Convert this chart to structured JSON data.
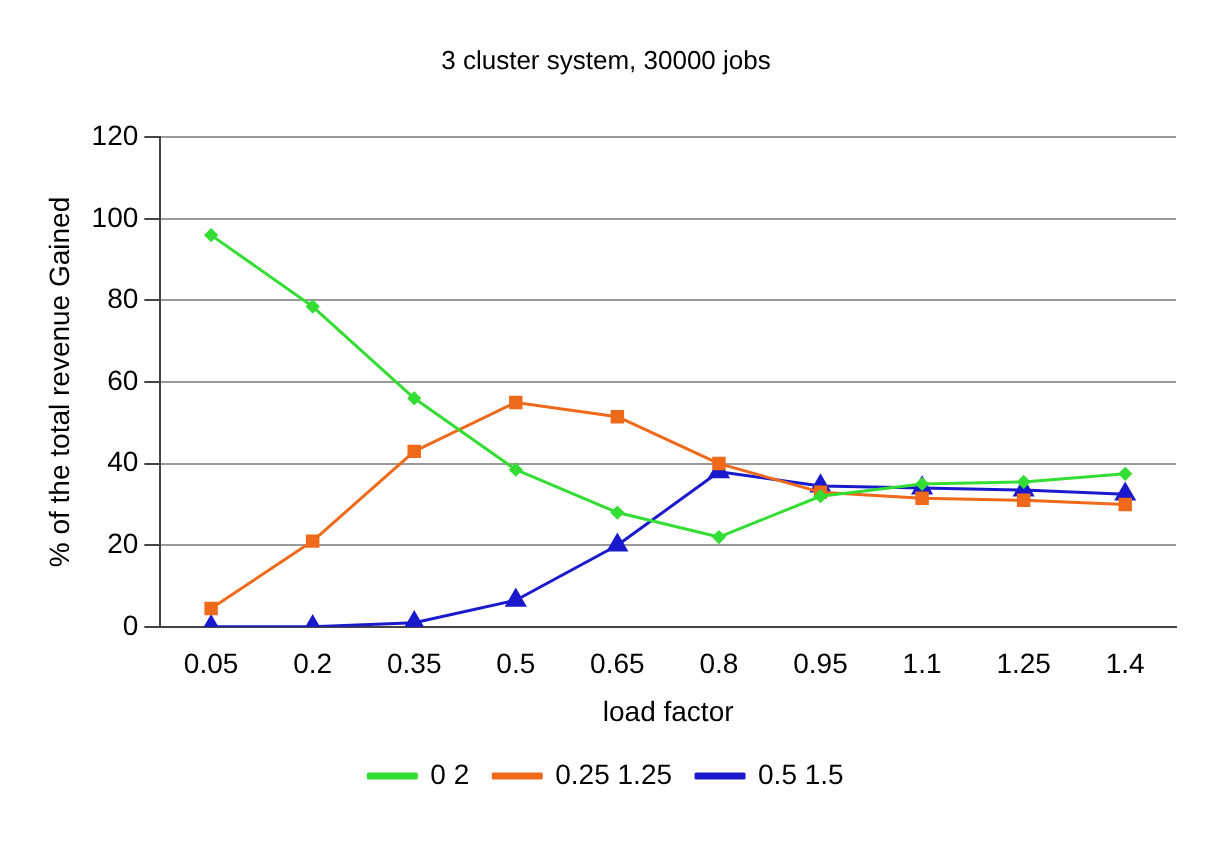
{
  "chart_data": {
    "type": "line",
    "title": "3 cluster system, 30000 jobs",
    "xlabel": "load factor",
    "ylabel": "% of the total revenue Gained",
    "categories": [
      "0.05",
      "0.2",
      "0.35",
      "0.5",
      "0.65",
      "0.8",
      "0.95",
      "1.1",
      "1.25",
      "1.4"
    ],
    "series": [
      {
        "name": "0 2",
        "color": "#33dd33",
        "marker": "diamond",
        "values": [
          96,
          78.5,
          56,
          38.5,
          28,
          22,
          32,
          35,
          35.5,
          37.5
        ]
      },
      {
        "name": "0.25 1.25",
        "color": "#ee6a1a",
        "marker": "square",
        "values": [
          4.5,
          21,
          43,
          55,
          51.5,
          40,
          33,
          31.5,
          31,
          30
        ]
      },
      {
        "name": "0.5 1.5",
        "color": "#1a1acc",
        "marker": "triangle",
        "values": [
          0,
          0,
          1,
          6.5,
          20,
          38,
          34.5,
          34,
          33.5,
          32.5
        ]
      }
    ],
    "ylim": [
      0,
      120
    ],
    "yticks": [
      0,
      20,
      40,
      60,
      80,
      100,
      120
    ],
    "grid": "y",
    "legend": "bottom",
    "line_style": "solid"
  }
}
